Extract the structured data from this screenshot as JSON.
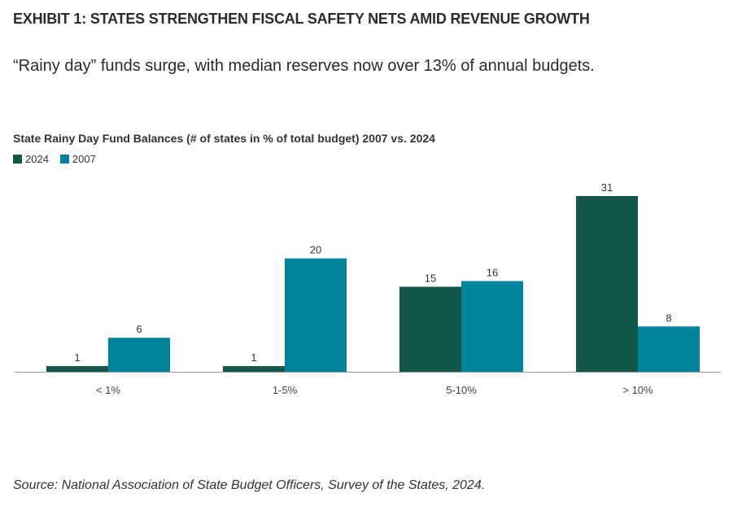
{
  "exhibit_title": "EXHIBIT 1: STATES STRENGTHEN FISCAL SAFETY NETS AMID REVENUE GROWTH",
  "subtitle": "“Rainy day” funds surge, with median reserves now over 13% of annual budgets.",
  "source": "Source: National Association of State Budget Officers, Survey of the States, 2024.",
  "chart_data": {
    "type": "bar",
    "title": "State Rainy Day Fund Balances (# of states in % of total budget) 2007 vs. 2024",
    "xlabel": "",
    "ylabel": "",
    "categories": [
      "< 1%",
      "1-5%",
      "5-10%",
      "> 10%"
    ],
    "series": [
      {
        "name": "2024",
        "color": "#12574a",
        "values": [
          1,
          1,
          15,
          31
        ]
      },
      {
        "name": "2007",
        "color": "#00849d",
        "values": [
          6,
          20,
          16,
          8
        ]
      }
    ],
    "ylim": [
      0,
      31
    ],
    "grid": false,
    "legend": "top-left"
  }
}
